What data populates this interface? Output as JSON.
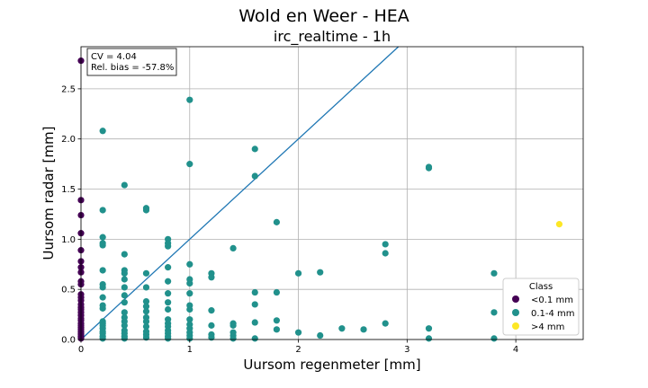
{
  "chart_data": {
    "type": "scatter",
    "suptitle": "Wold en Weer - HEA",
    "title": "irc_realtime - 1h",
    "xlabel": "Uursom regenmeter [mm]",
    "ylabel": "Uursom radar [mm]",
    "xlim": [
      0,
      4.62
    ],
    "ylim": [
      0,
      2.92
    ],
    "xticks": [
      0,
      1,
      2,
      3,
      4
    ],
    "yticks": [
      0.0,
      0.5,
      1.0,
      1.5,
      2.0,
      2.5
    ],
    "xtick_labels": [
      "0",
      "1",
      "2",
      "3",
      "4"
    ],
    "ytick_labels": [
      "0.0",
      "0.5",
      "1.0",
      "1.5",
      "2.0",
      "2.5"
    ],
    "grid": true,
    "reference_line": {
      "slope": 1,
      "intercept": 0,
      "color": "#1f77b4"
    },
    "annotation": {
      "lines": [
        "CV = 4.04",
        "Rel. bias = -57.8%"
      ],
      "position": "top-left"
    },
    "legend": {
      "title": "Class",
      "position": "lower-right"
    },
    "series": [
      {
        "name": "<0.1 mm",
        "color": "#440154",
        "points": [
          [
            0,
            2.78
          ],
          [
            0,
            1.39
          ],
          [
            0,
            1.24
          ],
          [
            0,
            1.06
          ],
          [
            0,
            0.89
          ],
          [
            0,
            0.78
          ],
          [
            0,
            0.72
          ],
          [
            0,
            0.67
          ],
          [
            0,
            0.58
          ],
          [
            0,
            0.55
          ],
          [
            0,
            0.45
          ],
          [
            0,
            0.42
          ],
          [
            0,
            0.39
          ],
          [
            0,
            0.35
          ],
          [
            0,
            0.32
          ],
          [
            0,
            0.3
          ],
          [
            0,
            0.27
          ],
          [
            0,
            0.24
          ],
          [
            0,
            0.21
          ],
          [
            0,
            0.19
          ],
          [
            0,
            0.16
          ],
          [
            0,
            0.14
          ],
          [
            0,
            0.12
          ],
          [
            0,
            0.1
          ],
          [
            0,
            0.08
          ],
          [
            0,
            0.06
          ],
          [
            0,
            0.05
          ],
          [
            0,
            0.03
          ],
          [
            0,
            0.02
          ],
          [
            0,
            0.01
          ]
        ]
      },
      {
        "name": "0.1-4 mm",
        "color": "#21918c",
        "points": [
          [
            0.2,
            2.08
          ],
          [
            0.2,
            1.29
          ],
          [
            0.2,
            1.02
          ],
          [
            0.2,
            0.96
          ],
          [
            0.2,
            0.94
          ],
          [
            0.2,
            0.69
          ],
          [
            0.2,
            0.55
          ],
          [
            0.2,
            0.52
          ],
          [
            0.2,
            0.42
          ],
          [
            0.2,
            0.34
          ],
          [
            0.2,
            0.31
          ],
          [
            0.2,
            0.18
          ],
          [
            0.2,
            0.16
          ],
          [
            0.2,
            0.14
          ],
          [
            0.2,
            0.11
          ],
          [
            0.2,
            0.08
          ],
          [
            0.2,
            0.06
          ],
          [
            0.2,
            0.03
          ],
          [
            0.2,
            0.01
          ],
          [
            0.4,
            1.54
          ],
          [
            0.4,
            0.85
          ],
          [
            0.4,
            0.69
          ],
          [
            0.4,
            0.66
          ],
          [
            0.4,
            0.6
          ],
          [
            0.4,
            0.52
          ],
          [
            0.4,
            0.44
          ],
          [
            0.4,
            0.37
          ],
          [
            0.4,
            0.27
          ],
          [
            0.4,
            0.22
          ],
          [
            0.4,
            0.18
          ],
          [
            0.4,
            0.14
          ],
          [
            0.4,
            0.09
          ],
          [
            0.4,
            0.06
          ],
          [
            0.4,
            0.03
          ],
          [
            0.4,
            0.01
          ],
          [
            0.6,
            1.31
          ],
          [
            0.6,
            1.29
          ],
          [
            0.6,
            0.66
          ],
          [
            0.6,
            0.52
          ],
          [
            0.6,
            0.38
          ],
          [
            0.6,
            0.33
          ],
          [
            0.6,
            0.28
          ],
          [
            0.6,
            0.22
          ],
          [
            0.6,
            0.18
          ],
          [
            0.6,
            0.13
          ],
          [
            0.6,
            0.08
          ],
          [
            0.6,
            0.05
          ],
          [
            0.6,
            0.02
          ],
          [
            0.8,
            1.0
          ],
          [
            0.8,
            0.96
          ],
          [
            0.8,
            0.93
          ],
          [
            0.8,
            0.72
          ],
          [
            0.8,
            0.58
          ],
          [
            0.8,
            0.46
          ],
          [
            0.8,
            0.37
          ],
          [
            0.8,
            0.3
          ],
          [
            0.8,
            0.2
          ],
          [
            0.8,
            0.16
          ],
          [
            0.8,
            0.13
          ],
          [
            0.8,
            0.09
          ],
          [
            0.8,
            0.06
          ],
          [
            0.8,
            0.03
          ],
          [
            0.8,
            0.01
          ],
          [
            1.0,
            2.39
          ],
          [
            1.0,
            1.75
          ],
          [
            1.0,
            0.75
          ],
          [
            1.0,
            0.6
          ],
          [
            1.0,
            0.56
          ],
          [
            1.0,
            0.46
          ],
          [
            1.0,
            0.34
          ],
          [
            1.0,
            0.3
          ],
          [
            1.0,
            0.2
          ],
          [
            1.0,
            0.15
          ],
          [
            1.0,
            0.11
          ],
          [
            1.0,
            0.07
          ],
          [
            1.0,
            0.04
          ],
          [
            1.0,
            0.01
          ],
          [
            1.2,
            0.66
          ],
          [
            1.2,
            0.62
          ],
          [
            1.2,
            0.29
          ],
          [
            1.2,
            0.14
          ],
          [
            1.2,
            0.05
          ],
          [
            1.2,
            0.02
          ],
          [
            1.4,
            0.91
          ],
          [
            1.4,
            0.16
          ],
          [
            1.4,
            0.14
          ],
          [
            1.4,
            0.07
          ],
          [
            1.4,
            0.04
          ],
          [
            1.4,
            0.01
          ],
          [
            1.6,
            1.9
          ],
          [
            1.6,
            1.63
          ],
          [
            1.6,
            0.47
          ],
          [
            1.6,
            0.35
          ],
          [
            1.6,
            0.17
          ],
          [
            1.6,
            0.01
          ],
          [
            1.8,
            1.17
          ],
          [
            1.8,
            0.47
          ],
          [
            1.8,
            0.19
          ],
          [
            1.8,
            0.1
          ],
          [
            2.0,
            0.66
          ],
          [
            2.0,
            0.07
          ],
          [
            2.2,
            0.67
          ],
          [
            2.2,
            0.04
          ],
          [
            2.4,
            0.11
          ],
          [
            2.6,
            0.1
          ],
          [
            2.8,
            0.95
          ],
          [
            2.8,
            0.86
          ],
          [
            2.8,
            0.16
          ],
          [
            3.2,
            1.72
          ],
          [
            3.2,
            1.71
          ],
          [
            3.2,
            0.11
          ],
          [
            3.2,
            0.01
          ],
          [
            3.8,
            0.66
          ],
          [
            3.8,
            0.27
          ],
          [
            3.8,
            0.01
          ]
        ]
      },
      {
        "name": ">4 mm",
        "color": "#fde725",
        "points": [
          [
            4.4,
            1.15
          ]
        ]
      }
    ]
  }
}
